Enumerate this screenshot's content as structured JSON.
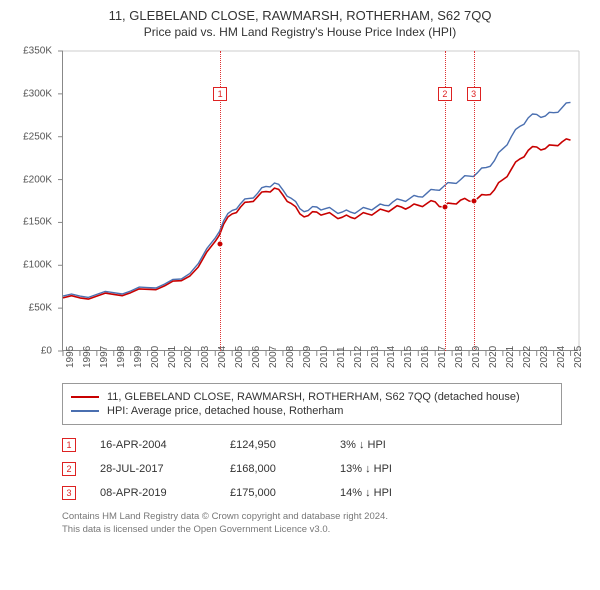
{
  "title": "11, GLEBELAND CLOSE, RAWMARSH, ROTHERHAM, S62 7QQ",
  "subtitle": "Price paid vs. HM Land Registry's House Price Index (HPI)",
  "chart": {
    "type": "line",
    "background_color": "#ffffff",
    "grid_color": "#cccccc",
    "axis_color": "#888888",
    "x_years": [
      1995,
      1996,
      1997,
      1998,
      1999,
      2000,
      2001,
      2002,
      2003,
      2004,
      2005,
      2006,
      2007,
      2008,
      2009,
      2010,
      2011,
      2012,
      2013,
      2014,
      2015,
      2016,
      2017,
      2018,
      2019,
      2020,
      2021,
      2022,
      2023,
      2024,
      2025
    ],
    "xlim": [
      1995,
      2025.5
    ],
    "ylim": [
      0,
      350000
    ],
    "ytick_step": 50000,
    "ytick_labels": [
      "£0",
      "£50K",
      "£100K",
      "£150K",
      "£200K",
      "£250K",
      "£300K",
      "£350K"
    ],
    "label_fontsize": 10,
    "series": [
      {
        "name": "11, GLEBELAND CLOSE, RAWMARSH, ROTHERHAM, S62 7QQ (detached house)",
        "color": "#c80000",
        "line_width": 1.6,
        "data": [
          [
            1995,
            62000
          ],
          [
            1996,
            62000
          ],
          [
            1997,
            64000
          ],
          [
            1998,
            66000
          ],
          [
            1999,
            68000
          ],
          [
            2000,
            72000
          ],
          [
            2001,
            76000
          ],
          [
            2002,
            82000
          ],
          [
            2003,
            98000
          ],
          [
            2004,
            128000
          ],
          [
            2004.5,
            148000
          ],
          [
            2005,
            160000
          ],
          [
            2005.5,
            168000
          ],
          [
            2006,
            174000
          ],
          [
            2006.5,
            180000
          ],
          [
            2007,
            186000
          ],
          [
            2007.5,
            190000
          ],
          [
            2008,
            182000
          ],
          [
            2008.5,
            172000
          ],
          [
            2009,
            160000
          ],
          [
            2009.5,
            158000
          ],
          [
            2010,
            162000
          ],
          [
            2010.5,
            160000
          ],
          [
            2011,
            158000
          ],
          [
            2011.5,
            156000
          ],
          [
            2012,
            156000
          ],
          [
            2012.5,
            158000
          ],
          [
            2013,
            160000
          ],
          [
            2013.5,
            162000
          ],
          [
            2014,
            164000
          ],
          [
            2014.5,
            166000
          ],
          [
            2015,
            168000
          ],
          [
            2015.5,
            168000
          ],
          [
            2016,
            170000
          ],
          [
            2016.5,
            172000
          ],
          [
            2017,
            174000
          ],
          [
            2017.5,
            168000
          ],
          [
            2018,
            172000
          ],
          [
            2018.5,
            176000
          ],
          [
            2019,
            175000
          ],
          [
            2019.5,
            178000
          ],
          [
            2020,
            182000
          ],
          [
            2020.5,
            188000
          ],
          [
            2021,
            200000
          ],
          [
            2021.5,
            212000
          ],
          [
            2022,
            224000
          ],
          [
            2022.5,
            234000
          ],
          [
            2023,
            238000
          ],
          [
            2023.5,
            236000
          ],
          [
            2024,
            240000
          ],
          [
            2024.5,
            244000
          ],
          [
            2025,
            246000
          ]
        ]
      },
      {
        "name": "HPI: Average price, detached house, Rotherham",
        "color": "#4a6fb0",
        "line_width": 1.4,
        "data": [
          [
            1995,
            64000
          ],
          [
            1996,
            64000
          ],
          [
            1997,
            66000
          ],
          [
            1998,
            68000
          ],
          [
            1999,
            70000
          ],
          [
            2000,
            74000
          ],
          [
            2001,
            78000
          ],
          [
            2002,
            84000
          ],
          [
            2003,
            102000
          ],
          [
            2004,
            132000
          ],
          [
            2004.5,
            152000
          ],
          [
            2005,
            164000
          ],
          [
            2005.5,
            172000
          ],
          [
            2006,
            178000
          ],
          [
            2006.5,
            184000
          ],
          [
            2007,
            192000
          ],
          [
            2007.5,
            196000
          ],
          [
            2008,
            188000
          ],
          [
            2008.5,
            178000
          ],
          [
            2009,
            166000
          ],
          [
            2009.5,
            164000
          ],
          [
            2010,
            168000
          ],
          [
            2010.5,
            166000
          ],
          [
            2011,
            164000
          ],
          [
            2011.5,
            162000
          ],
          [
            2012,
            162000
          ],
          [
            2012.5,
            164000
          ],
          [
            2013,
            166000
          ],
          [
            2013.5,
            168000
          ],
          [
            2014,
            170000
          ],
          [
            2014.5,
            174000
          ],
          [
            2015,
            176000
          ],
          [
            2015.5,
            178000
          ],
          [
            2016,
            180000
          ],
          [
            2016.5,
            184000
          ],
          [
            2017,
            188000
          ],
          [
            2017.5,
            192000
          ],
          [
            2018,
            196000
          ],
          [
            2018.5,
            200000
          ],
          [
            2019,
            204000
          ],
          [
            2019.5,
            208000
          ],
          [
            2020,
            214000
          ],
          [
            2020.5,
            222000
          ],
          [
            2021,
            236000
          ],
          [
            2021.5,
            250000
          ],
          [
            2022,
            262000
          ],
          [
            2022.5,
            272000
          ],
          [
            2023,
            276000
          ],
          [
            2023.5,
            274000
          ],
          [
            2024,
            278000
          ],
          [
            2024.5,
            284000
          ],
          [
            2025,
            290000
          ]
        ]
      }
    ],
    "event_markers": [
      {
        "label": "1",
        "x": 2004.29,
        "box_top": 36
      },
      {
        "label": "2",
        "x": 2017.57,
        "box_top": 36
      },
      {
        "label": "3",
        "x": 2019.27,
        "box_top": 36
      }
    ],
    "transaction_points": [
      {
        "x": 2004.29,
        "y": 124950
      },
      {
        "x": 2017.57,
        "y": 168000
      },
      {
        "x": 2019.27,
        "y": 175000
      }
    ]
  },
  "legend": {
    "items": [
      {
        "color": "#c80000",
        "label": "11, GLEBELAND CLOSE, RAWMARSH, ROTHERHAM, S62 7QQ (detached house)"
      },
      {
        "color": "#4a6fb0",
        "label": "HPI: Average price, detached house, Rotherham"
      }
    ]
  },
  "transactions": [
    {
      "marker": "1",
      "date": "16-APR-2004",
      "price": "£124,950",
      "diff": "3% ↓ HPI"
    },
    {
      "marker": "2",
      "date": "28-JUL-2017",
      "price": "£168,000",
      "diff": "13% ↓ HPI"
    },
    {
      "marker": "3",
      "date": "08-APR-2019",
      "price": "£175,000",
      "diff": "14% ↓ HPI"
    }
  ],
  "footer_line1": "Contains HM Land Registry data © Crown copyright and database right 2024.",
  "footer_line2": "This data is licensed under the Open Government Licence v3.0."
}
